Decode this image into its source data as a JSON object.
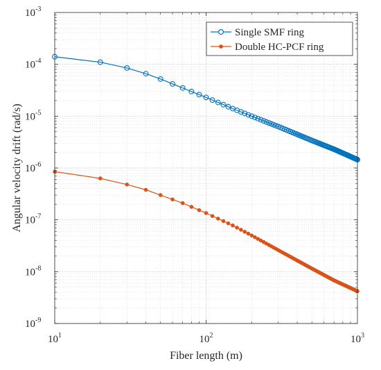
{
  "chart_data": {
    "type": "line",
    "xlabel": "Fiber length (m)",
    "ylabel": "Angular velocity drift (rad/s)",
    "x_scale": "log",
    "y_scale": "log",
    "xlim": [
      10,
      1000
    ],
    "ylim": [
      1e-09,
      0.001
    ],
    "grid": true,
    "legend_position": "top-right",
    "x_ticks": [
      {
        "base": "10",
        "exp": "1",
        "value": 10
      },
      {
        "base": "10",
        "exp": "2",
        "value": 100
      },
      {
        "base": "10",
        "exp": "3",
        "value": 1000
      }
    ],
    "y_ticks": [
      {
        "base": "10",
        "exp": "-9",
        "value": 1e-09
      },
      {
        "base": "10",
        "exp": "-8",
        "value": 1e-08
      },
      {
        "base": "10",
        "exp": "-7",
        "value": 1e-07
      },
      {
        "base": "10",
        "exp": "-6",
        "value": 1e-06
      },
      {
        "base": "10",
        "exp": "-5",
        "value": 1e-05
      },
      {
        "base": "10",
        "exp": "-4",
        "value": 0.0001
      },
      {
        "base": "10",
        "exp": "-3",
        "value": 0.001
      }
    ],
    "x": [
      10,
      20,
      30,
      40,
      50,
      60,
      70,
      80,
      90,
      100,
      110,
      120,
      130,
      140,
      150,
      160,
      170,
      180,
      190,
      200,
      210,
      220,
      230,
      240,
      250,
      260,
      270,
      280,
      290,
      300,
      310,
      320,
      330,
      340,
      350,
      360,
      370,
      380,
      390,
      400,
      410,
      420,
      430,
      440,
      450,
      460,
      470,
      480,
      490,
      500,
      510,
      520,
      530,
      540,
      550,
      560,
      570,
      580,
      590,
      600,
      610,
      620,
      630,
      640,
      650,
      660,
      670,
      680,
      690,
      700,
      710,
      720,
      730,
      740,
      750,
      760,
      770,
      780,
      790,
      800,
      810,
      820,
      830,
      840,
      850,
      860,
      870,
      880,
      890,
      900,
      910,
      920,
      930,
      940,
      950,
      960,
      970,
      980,
      990,
      1000
    ],
    "series": [
      {
        "name": "Single SMF ring",
        "color": "#0072BD",
        "marker": "circle-open",
        "anchors": [
          [
            10,
            0.00014
          ],
          [
            20,
            0.00011
          ],
          [
            30,
            8.5e-05
          ],
          [
            40,
            6.6e-05
          ],
          [
            50,
            5.2e-05
          ],
          [
            70,
            3.5e-05
          ],
          [
            100,
            2.3e-05
          ],
          [
            150,
            1.4e-05
          ],
          [
            200,
            1e-05
          ],
          [
            300,
            6.3e-06
          ],
          [
            500,
            3.4e-06
          ],
          [
            700,
            2.3e-06
          ],
          [
            1000,
            1.45e-06
          ]
        ]
      },
      {
        "name": "Double HC-PCF ring",
        "color": "#D95319",
        "marker": "dot-filled",
        "anchors": [
          [
            10,
            8.5e-07
          ],
          [
            20,
            6.3e-07
          ],
          [
            30,
            4.8e-07
          ],
          [
            40,
            3.8e-07
          ],
          [
            50,
            3e-07
          ],
          [
            70,
            2.1e-07
          ],
          [
            100,
            1.35e-07
          ],
          [
            150,
            7.8e-08
          ],
          [
            200,
            5e-08
          ],
          [
            300,
            2.6e-08
          ],
          [
            500,
            1.15e-08
          ],
          [
            700,
            6.8e-09
          ],
          [
            1000,
            4.2e-09
          ]
        ]
      }
    ]
  }
}
